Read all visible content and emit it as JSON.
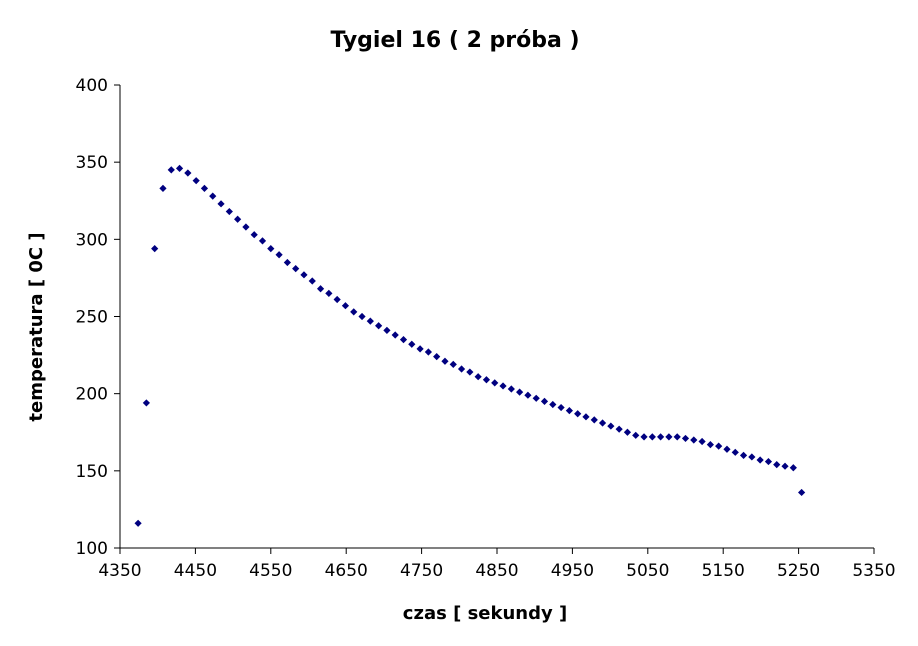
{
  "chart_data": {
    "type": "scatter",
    "title": "Tygiel 16 ( 2 próba )",
    "xlabel": "czas [ sekundy ]",
    "ylabel": "temperatura [ 0C ]",
    "xlim": [
      4350,
      5350
    ],
    "ylim": [
      100,
      400
    ],
    "xticks": [
      4350,
      4450,
      4550,
      4650,
      4750,
      4850,
      4950,
      5050,
      5150,
      5250,
      5350
    ],
    "yticks": [
      100,
      150,
      200,
      250,
      300,
      350,
      400
    ],
    "grid": false,
    "legend": "none",
    "marker": "diamond",
    "color": "#000080",
    "series": [
      {
        "x": [
          4374,
          4385,
          4396,
          4407,
          4418,
          4429,
          4440,
          4451,
          4462,
          4473,
          4484,
          4495,
          4506,
          4517,
          4528,
          4539,
          4550,
          4561,
          4572,
          4583,
          4594,
          4605,
          4616,
          4627,
          4638,
          4649,
          4660,
          4671,
          4682,
          4693,
          4704,
          4715,
          4726,
          4737,
          4748,
          4759,
          4770,
          4781,
          4792,
          4803,
          4814,
          4825,
          4836,
          4847,
          4858,
          4869,
          4880,
          4891,
          4902,
          4913,
          4924,
          4935,
          4946,
          4957,
          4968,
          4979,
          4990,
          5001,
          5012,
          5023,
          5034,
          5045,
          5056,
          5067,
          5078,
          5089,
          5100,
          5111,
          5122,
          5133,
          5144,
          5155,
          5166,
          5177,
          5188,
          5199,
          5210,
          5221,
          5232,
          5243,
          5254
        ],
        "y": [
          116,
          194,
          294,
          333,
          345,
          346,
          343,
          338,
          333,
          328,
          323,
          318,
          313,
          308,
          303,
          299,
          294,
          290,
          285,
          281,
          277,
          273,
          268,
          265,
          261,
          257,
          253,
          250,
          247,
          244,
          241,
          238,
          235,
          232,
          229,
          227,
          224,
          221,
          219,
          216,
          214,
          211,
          209,
          207,
          205,
          203,
          201,
          199,
          197,
          195,
          193,
          191,
          189,
          187,
          185,
          183,
          181,
          179,
          177,
          175,
          173,
          172,
          172,
          172,
          172,
          172,
          171,
          170,
          169,
          167,
          166,
          164,
          162,
          160,
          159,
          157,
          156,
          154,
          153,
          152,
          136
        ]
      }
    ]
  }
}
